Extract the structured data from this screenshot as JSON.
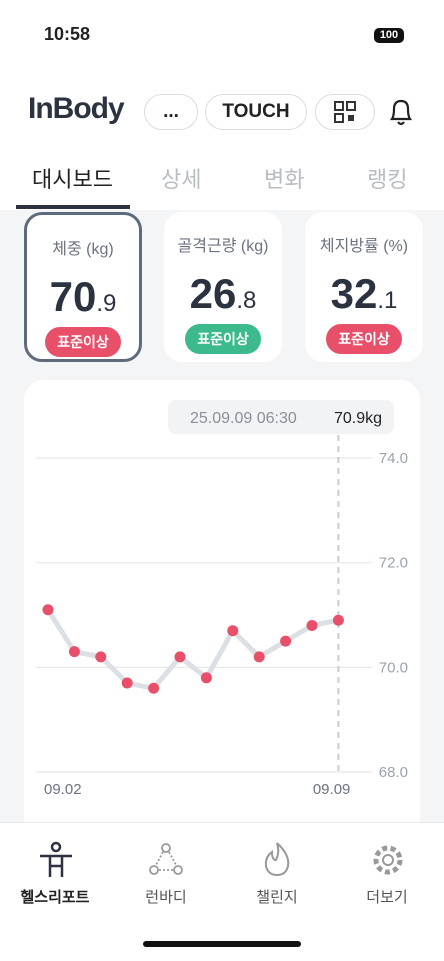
{
  "status_bar": {
    "time": "10:58",
    "battery": "100"
  },
  "header": {
    "logo": "InBody",
    "more_button": "...",
    "touch_button": "TOUCH"
  },
  "tabs": [
    "대시보드",
    "상세",
    "변화",
    "랭킹"
  ],
  "cards": [
    {
      "title": "체중 (kg)",
      "value_int": "70",
      "value_dec": ".9",
      "badge": "표준이상",
      "badge_color": "#e8506a"
    },
    {
      "title": "골격근량 (kg)",
      "value_int": "26",
      "value_dec": ".8",
      "badge": "표준이상",
      "badge_color": "#3dba8c"
    },
    {
      "title": "체지방률 (%)",
      "value_int": "32",
      "value_dec": ".1",
      "badge": "표준이상",
      "badge_color": "#e8506a"
    }
  ],
  "weight_chart": {
    "type": "line",
    "tooltip_date": "25.09.09 06:30",
    "tooltip_value": "70.9kg",
    "categories": [
      "09.02",
      null,
      null,
      null,
      null,
      null,
      null,
      null,
      null,
      null,
      null,
      "09.09"
    ],
    "values": [
      71.1,
      70.3,
      70.2,
      69.7,
      69.6,
      70.2,
      69.8,
      70.7,
      70.2,
      70.5,
      70.8,
      70.9
    ],
    "color": "#e8506a",
    "ylim": [
      68,
      74
    ],
    "yticks": [
      {
        "value": 74,
        "label": "74.0"
      },
      {
        "value": 72,
        "label": "72.0"
      },
      {
        "value": 70,
        "label": "70.0"
      },
      {
        "value": 68,
        "label": "68.0"
      }
    ],
    "grid": true
  },
  "bottom_nav": [
    "헬스리포트",
    "런바디",
    "챌린지",
    "더보기"
  ]
}
